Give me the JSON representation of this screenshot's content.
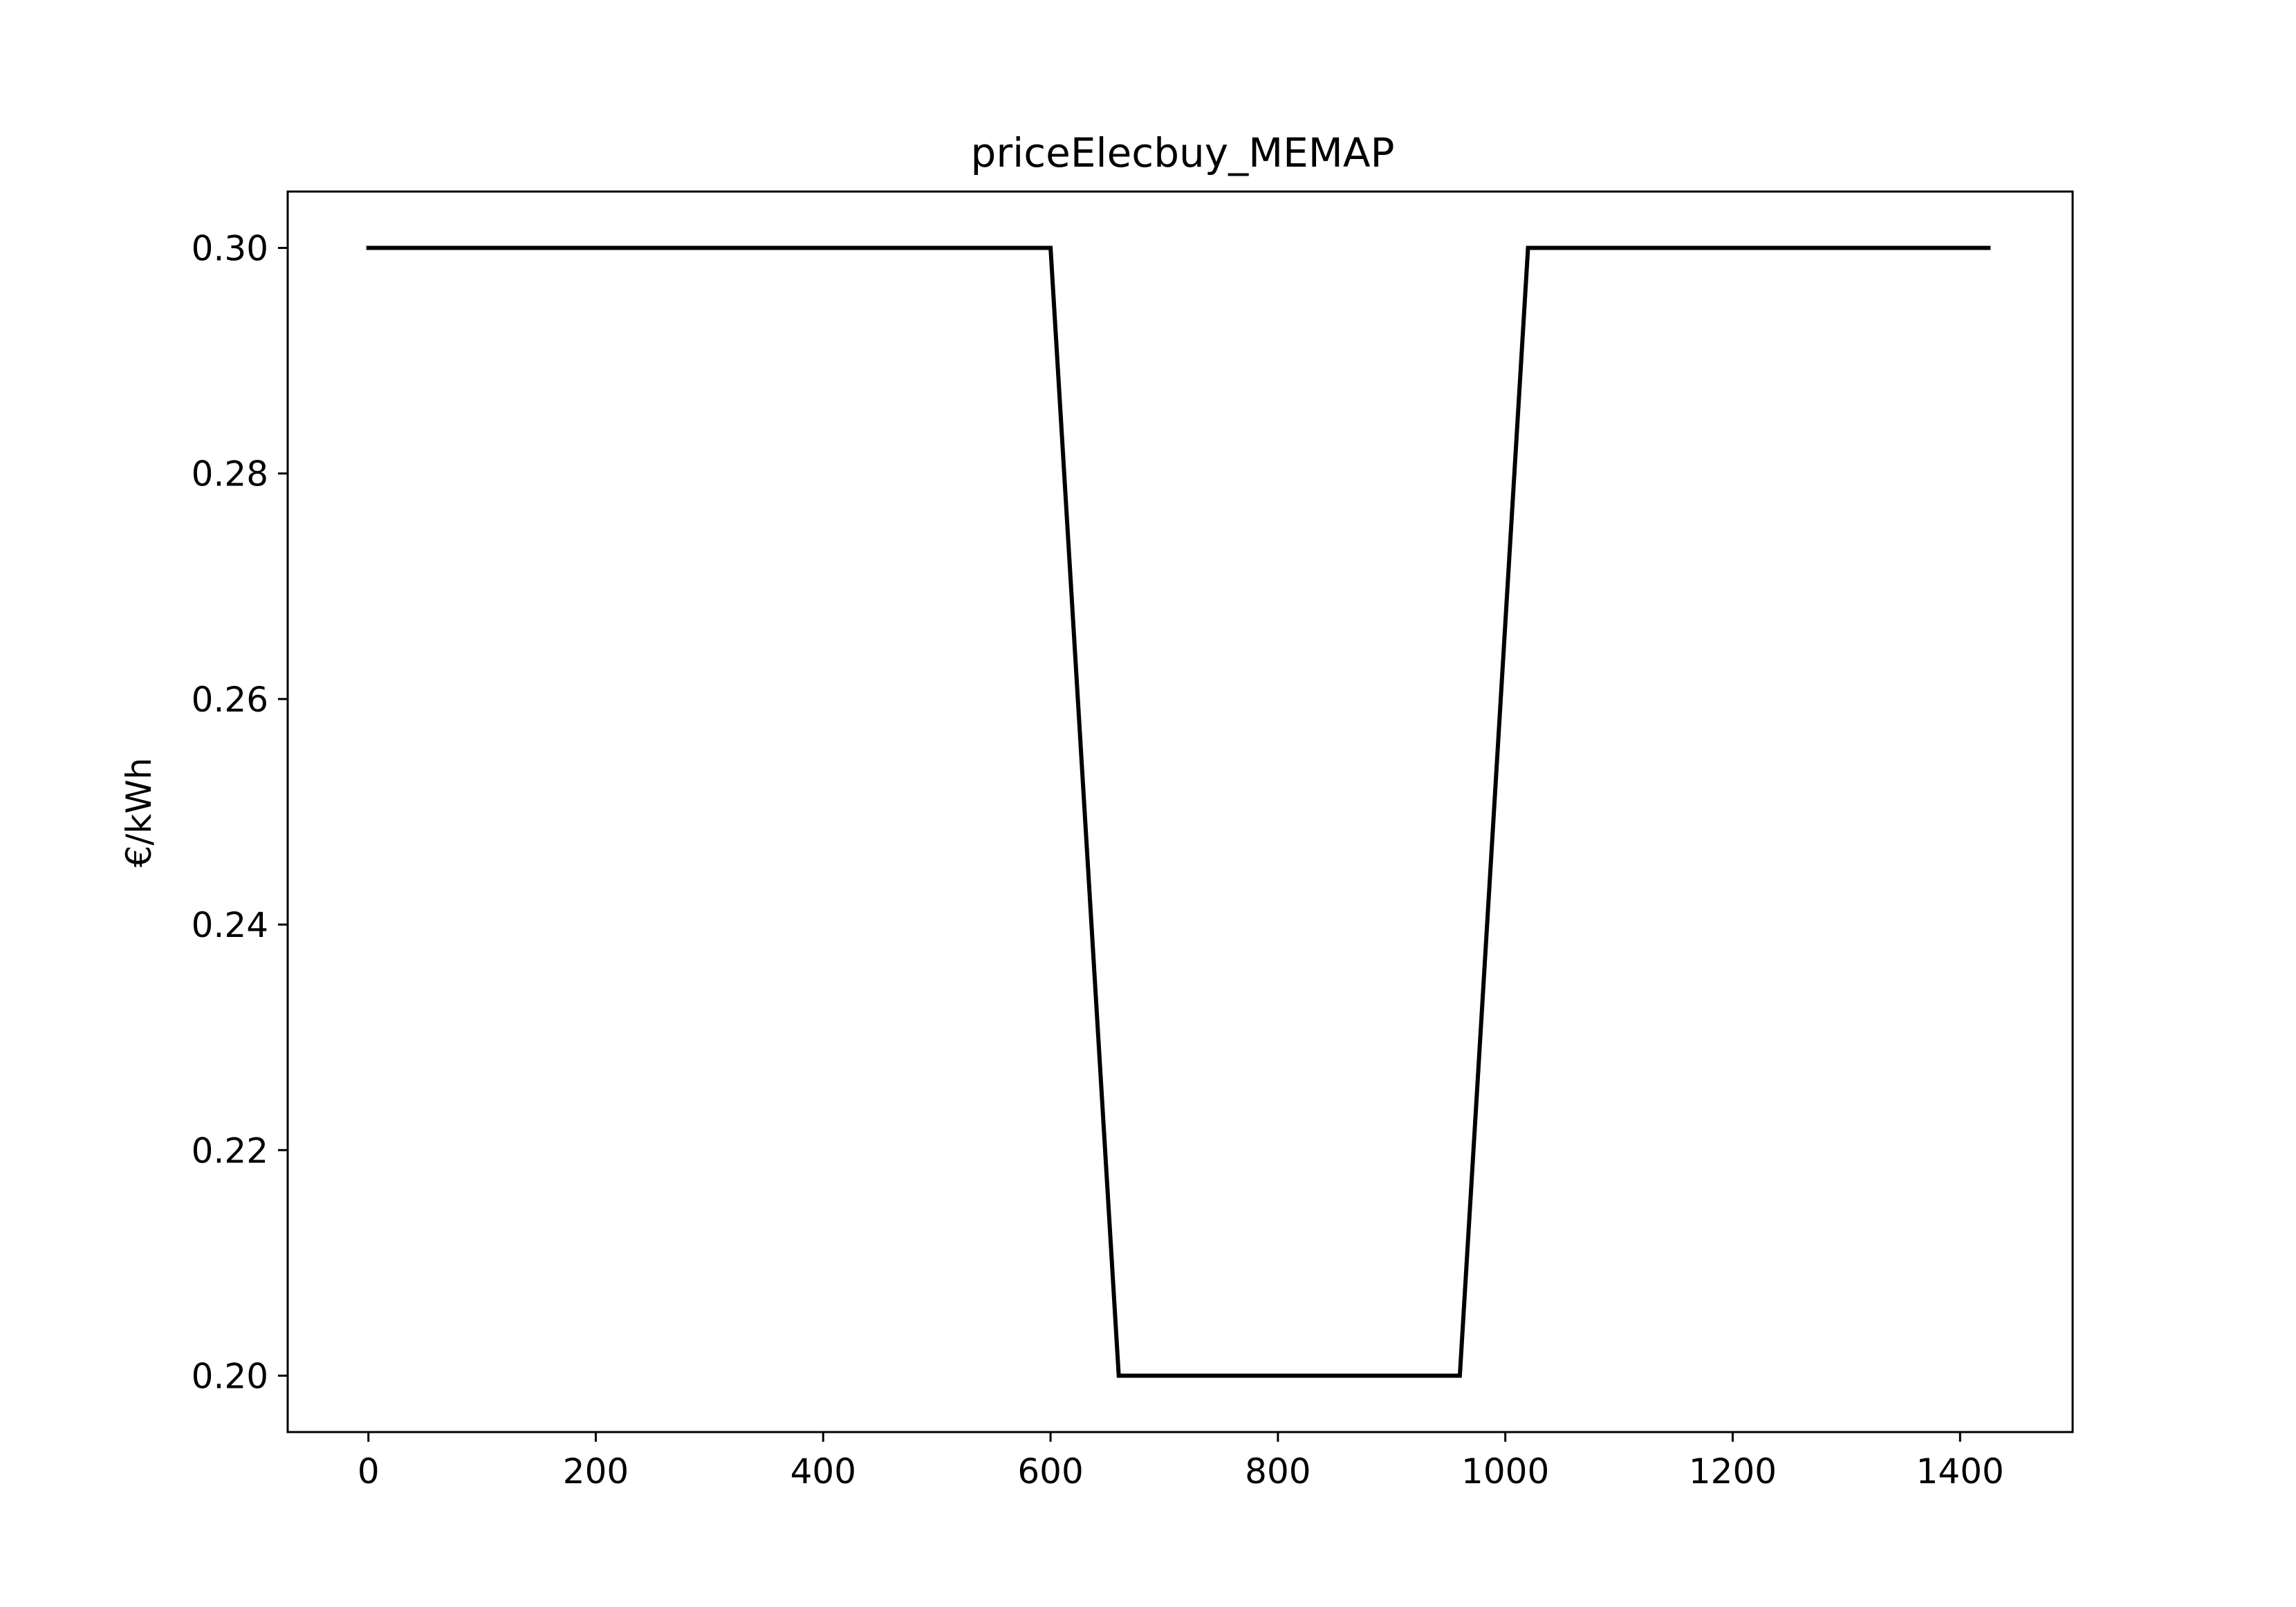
{
  "chart_data": {
    "type": "line",
    "title": "priceElecbuy_MEMAP",
    "xlabel": "",
    "ylabel": "€/kWh",
    "xlim": [
      -71,
      1499
    ],
    "ylim": [
      0.195,
      0.305
    ],
    "xticks": [
      {
        "value": 0,
        "label": "0"
      },
      {
        "value": 200,
        "label": "200"
      },
      {
        "value": 400,
        "label": "400"
      },
      {
        "value": 600,
        "label": "600"
      },
      {
        "value": 800,
        "label": "800"
      },
      {
        "value": 1000,
        "label": "1000"
      },
      {
        "value": 1200,
        "label": "1200"
      },
      {
        "value": 1400,
        "label": "1400"
      }
    ],
    "yticks": [
      {
        "value": 0.2,
        "label": "0.20"
      },
      {
        "value": 0.22,
        "label": "0.22"
      },
      {
        "value": 0.24,
        "label": "0.24"
      },
      {
        "value": 0.26,
        "label": "0.26"
      },
      {
        "value": 0.28,
        "label": "0.28"
      },
      {
        "value": 0.3,
        "label": "0.30"
      }
    ],
    "grid": false,
    "series": [
      {
        "color": "#000000",
        "x": [
          0,
          600,
          660,
          960,
          1020,
          1425
        ],
        "y": [
          0.3,
          0.3,
          0.2,
          0.2,
          0.3,
          0.3
        ]
      }
    ]
  }
}
